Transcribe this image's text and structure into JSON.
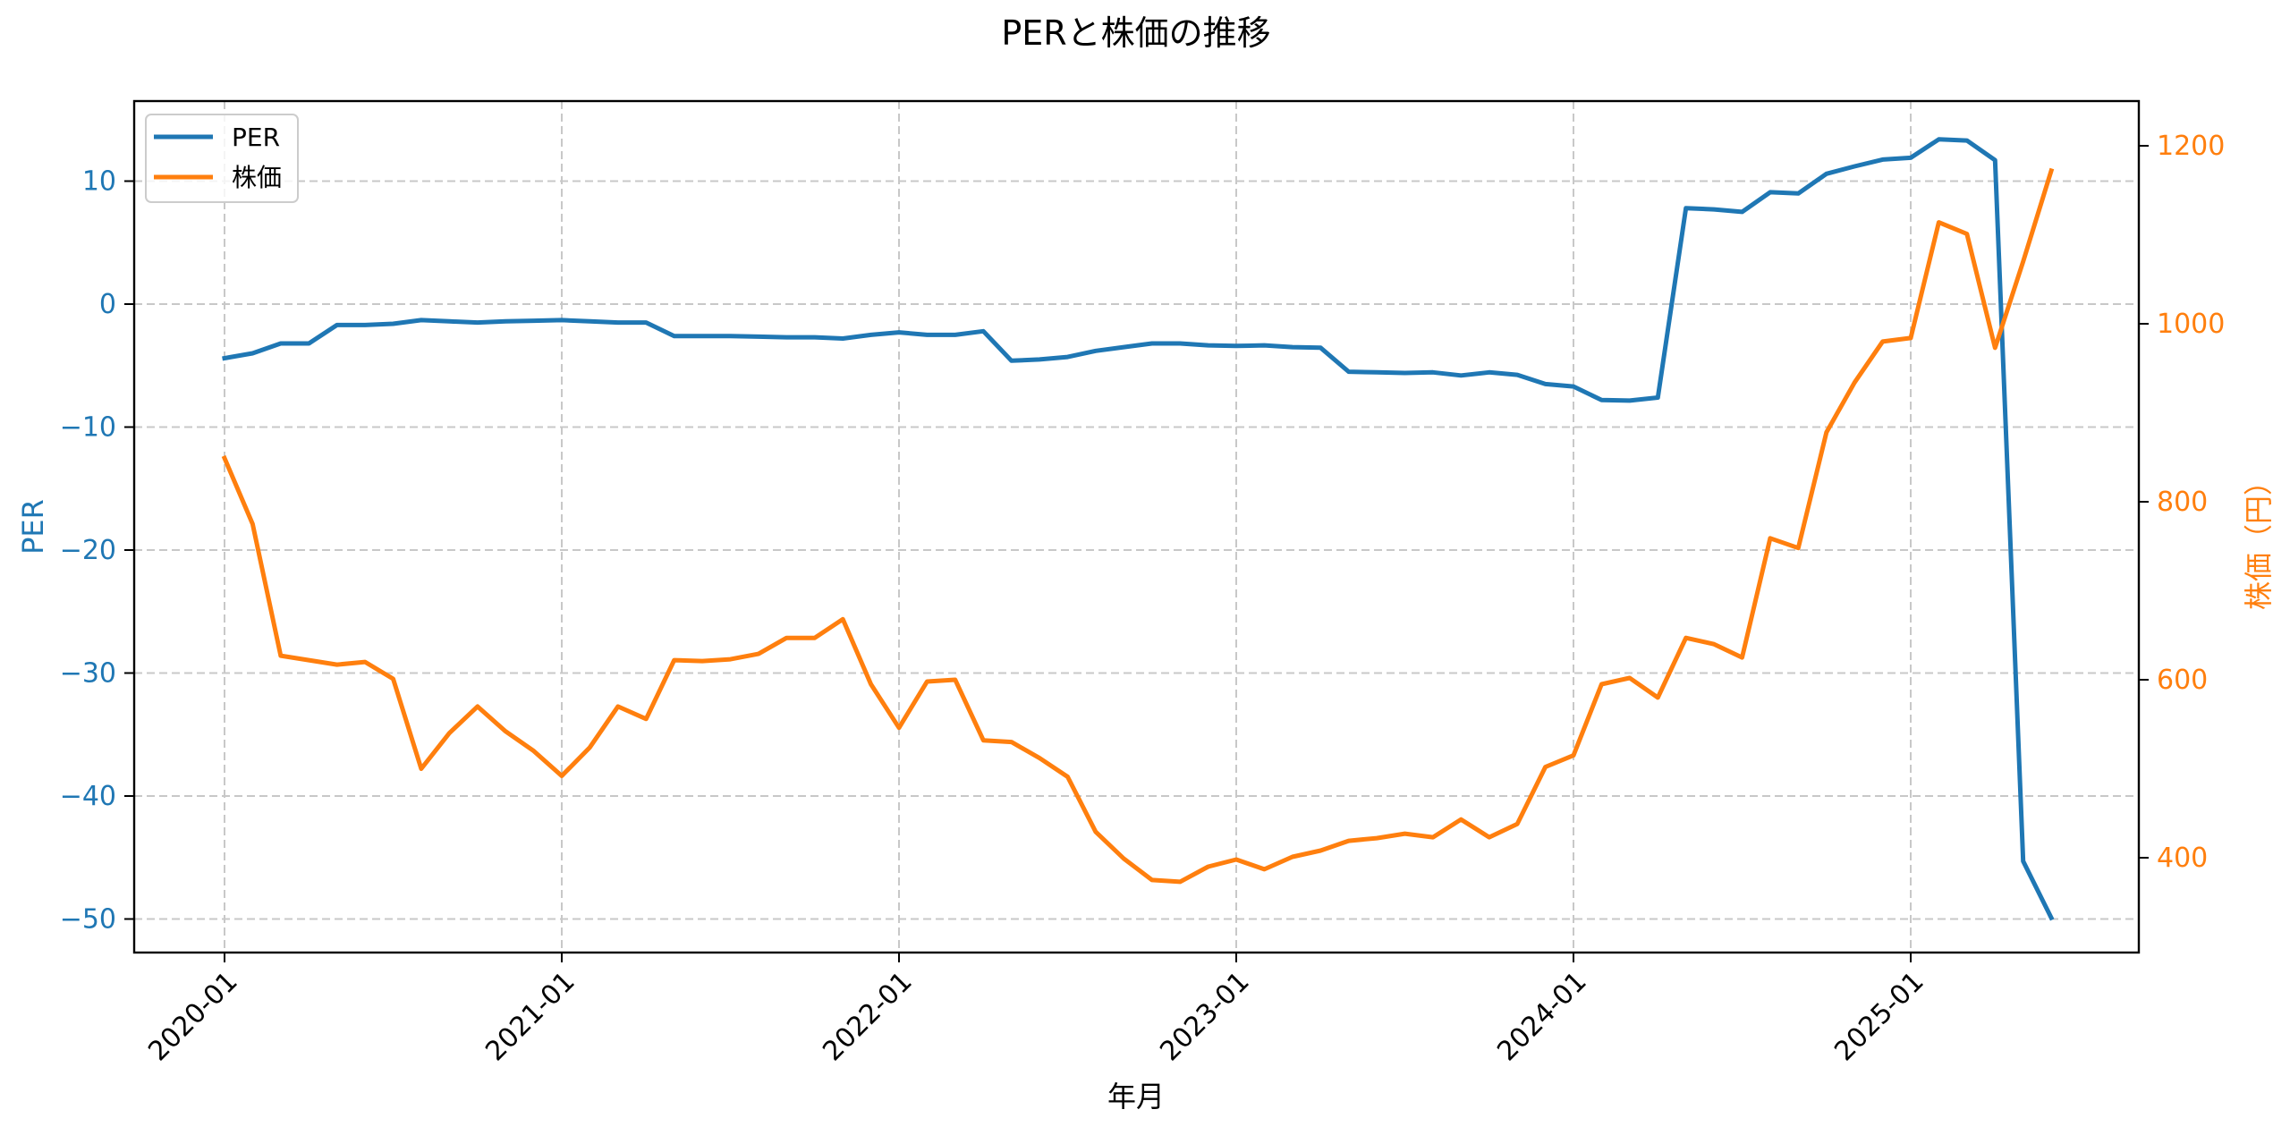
{
  "chart_data": {
    "type": "line",
    "title": "PERと株価の推移",
    "xlabel": "年月",
    "ylabel_left": "PER",
    "ylabel_right": "株価（円）",
    "x_tick_labels": [
      "2020-01",
      "2021-01",
      "2022-01",
      "2023-01",
      "2024-01",
      "2025-01"
    ],
    "y_left_ticks": [
      10,
      0,
      -10,
      -20,
      -30,
      -40,
      -50
    ],
    "y_right_ticks": [
      1200,
      1000,
      800,
      600,
      400
    ],
    "ylim_left": [
      -53,
      16.5
    ],
    "ylim_right": [
      298,
      1249
    ],
    "grid": true,
    "legend_position": "upper left",
    "colors": {
      "PER": "#1f77b4",
      "株価": "#ff7f0e",
      "grid": "#c8c8c8",
      "left_axis_text": "#1f77b4",
      "right_axis_text": "#ff7f0e"
    },
    "x": [
      "2020-01",
      "2020-02",
      "2020-03",
      "2020-04",
      "2020-05",
      "2020-06",
      "2020-07",
      "2020-08",
      "2020-09",
      "2020-10",
      "2020-11",
      "2020-12",
      "2021-01",
      "2021-02",
      "2021-03",
      "2021-04",
      "2021-05",
      "2021-06",
      "2021-07",
      "2021-08",
      "2021-09",
      "2021-10",
      "2021-11",
      "2021-12",
      "2022-01",
      "2022-02",
      "2022-03",
      "2022-04",
      "2022-05",
      "2022-06",
      "2022-07",
      "2022-08",
      "2022-09",
      "2022-10",
      "2022-11",
      "2022-12",
      "2023-01",
      "2023-02",
      "2023-03",
      "2023-04",
      "2023-05",
      "2023-06",
      "2023-07",
      "2023-08",
      "2023-09",
      "2023-10",
      "2023-11",
      "2023-12",
      "2024-01",
      "2024-02",
      "2024-03",
      "2024-04",
      "2024-05",
      "2024-06",
      "2024-07",
      "2024-08",
      "2024-09",
      "2024-10",
      "2024-11",
      "2024-12",
      "2025-01",
      "2025-02",
      "2025-03",
      "2025-04",
      "2025-05",
      "2025-06"
    ],
    "series": [
      {
        "name": "PER",
        "axis": "left",
        "values": [
          -4.4,
          -4.0,
          -3.2,
          -3.2,
          -1.7,
          -1.7,
          -1.6,
          -1.3,
          -1.4,
          -1.5,
          -1.4,
          -1.35,
          -1.3,
          -1.4,
          -1.5,
          -1.5,
          -2.6,
          -2.6,
          -2.6,
          -2.65,
          -2.7,
          -2.7,
          -2.8,
          -2.5,
          -2.3,
          -2.5,
          -2.5,
          -2.2,
          -4.6,
          -4.5,
          -4.3,
          -3.8,
          -3.5,
          -3.2,
          -3.2,
          -3.35,
          -3.4,
          -3.35,
          -3.5,
          -3.55,
          -5.5,
          -5.55,
          -5.6,
          -5.55,
          -5.8,
          -5.55,
          -5.75,
          -6.5,
          -6.7,
          -7.8,
          -7.85,
          -7.6,
          7.8,
          7.7,
          7.5,
          9.1,
          9.0,
          10.6,
          11.2,
          11.75,
          11.9,
          13.4,
          13.3,
          11.7,
          -45.3,
          -49.9
        ]
      },
      {
        "name": "株価",
        "axis": "right",
        "values": [
          849,
          775,
          627,
          622,
          617,
          620,
          601,
          500,
          540,
          570,
          542,
          520,
          492,
          524,
          570,
          556,
          622,
          621,
          623,
          629,
          647,
          647,
          668,
          595,
          546,
          598,
          600,
          532,
          530,
          512,
          491,
          429,
          399,
          375,
          373,
          390,
          398,
          387,
          401,
          408,
          419,
          422,
          427,
          423,
          443,
          423,
          438,
          502,
          515,
          595,
          602,
          580,
          647,
          640,
          625,
          759,
          748,
          878,
          934,
          980,
          984,
          1114,
          1101,
          973,
          1070,
          1172
        ]
      }
    ]
  },
  "legend": {
    "items": [
      {
        "label": "PER"
      },
      {
        "label": "株価"
      }
    ]
  }
}
